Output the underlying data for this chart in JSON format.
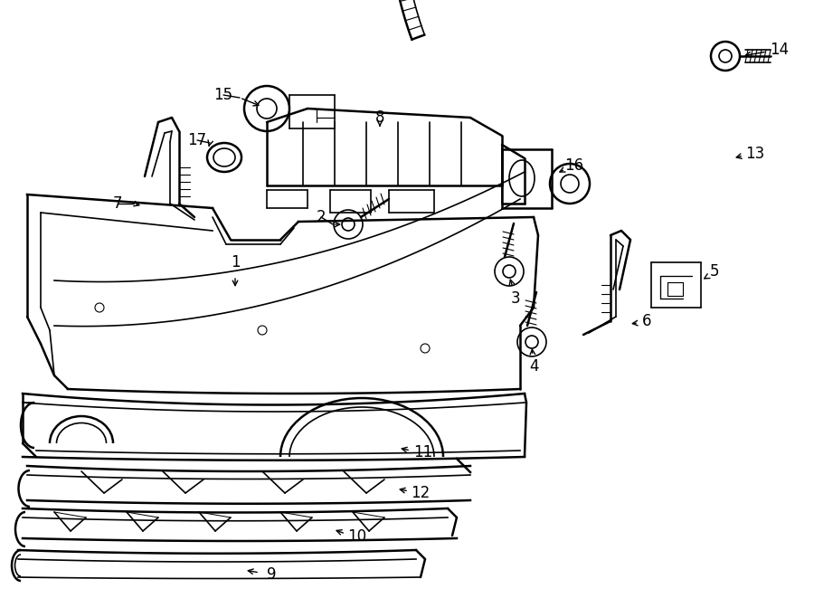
{
  "bg_color": "#ffffff",
  "line_color": "#000000",
  "fig_width": 9.0,
  "fig_height": 6.61,
  "dpi": 100,
  "label_fontsize": 12,
  "small_fontsize": 10
}
